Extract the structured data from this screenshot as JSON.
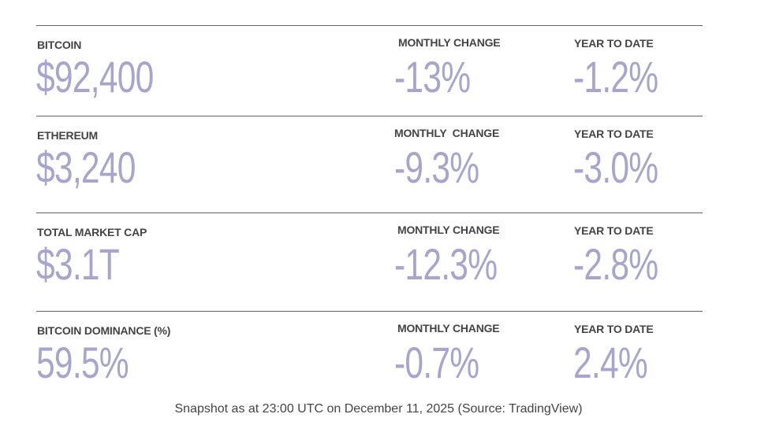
{
  "rows": [
    {
      "label": "BITCOIN",
      "value": "$92,400",
      "monthly_label": "MONTHLY CHANGE",
      "monthly_value": "-13%",
      "ytd_label": "YEAR TO DATE",
      "ytd_value": "-1.2%"
    },
    {
      "label": "ETHEREUM",
      "value": "$3,240",
      "monthly_label": "MONTHLY  CHANGE",
      "monthly_value": "-9.3%",
      "ytd_label": "YEAR TO DATE",
      "ytd_value": "-3.0%"
    },
    {
      "label": "TOTAL MARKET CAP",
      "value": "$3.1T",
      "monthly_label": "MONTHLY CHANGE",
      "monthly_value": "-12.3%",
      "ytd_label": "YEAR TO DATE",
      "ytd_value": "-2.8%"
    },
    {
      "label": "BITCOIN DOMINANCE (%)",
      "value": "59.5%",
      "monthly_label": "MONTHLY CHANGE",
      "monthly_value": "-0.7%",
      "ytd_label": "YEAR TO DATE",
      "ytd_value": "2.4%"
    }
  ],
  "footer": "Snapshot as at 23:00 UTC on December 11, 2025 (Source: TradingView)"
}
